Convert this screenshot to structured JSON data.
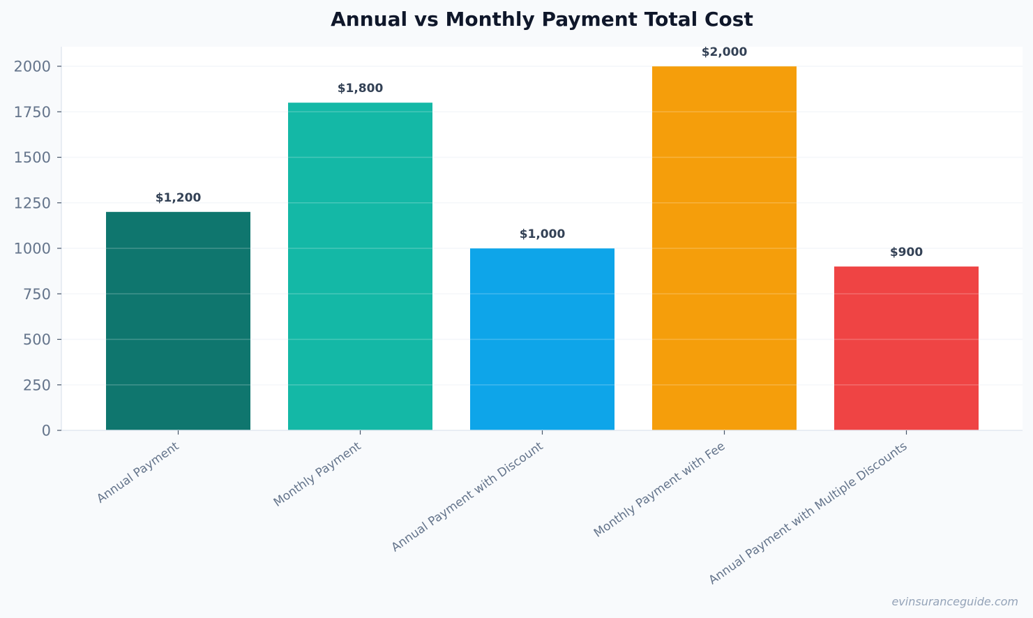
{
  "chart_data": {
    "type": "bar",
    "title": "Annual vs Monthly Payment Total Cost",
    "xlabel": "",
    "ylabel": "",
    "categories": [
      "Annual Payment",
      "Monthly Payment",
      "Annual Payment with Discount",
      "Monthly Payment with Fee",
      "Annual Payment with Multiple Discounts"
    ],
    "values": [
      1200,
      1800,
      1000,
      2000,
      900
    ],
    "data_labels": [
      "$1,200",
      "$1,800",
      "$1,000",
      "$2,000",
      "$900"
    ],
    "colors": [
      "#0f766e",
      "#14b8a6",
      "#0ea5e9",
      "#f59e0b",
      "#ef4444"
    ],
    "ylim": [
      0,
      2100
    ],
    "yticks": [
      0,
      250,
      500,
      750,
      1000,
      1250,
      1500,
      1750,
      2000
    ],
    "grid": true,
    "legend": "none"
  },
  "watermark": "evinsuranceguide.com"
}
